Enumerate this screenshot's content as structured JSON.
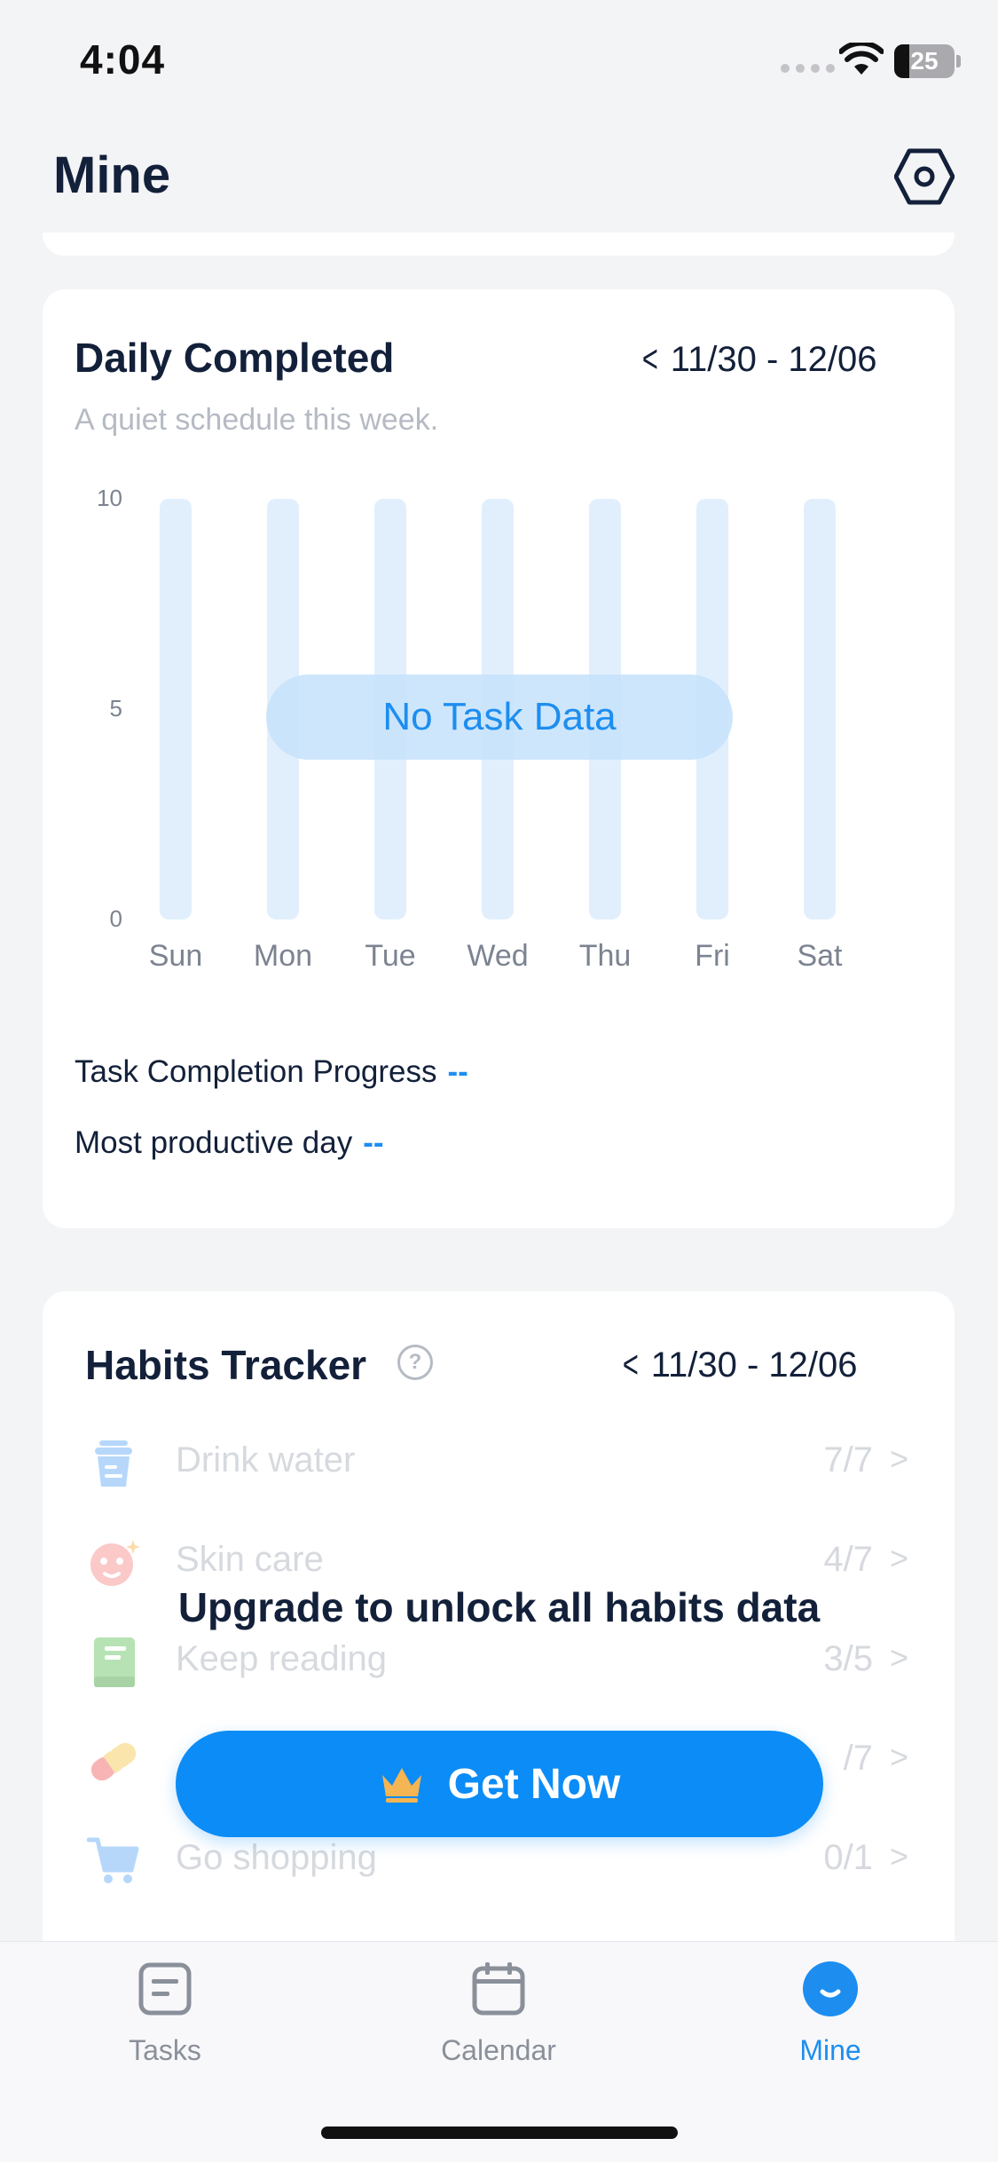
{
  "status": {
    "time": "4:04",
    "battery": "25"
  },
  "header": {
    "title": "Mine"
  },
  "daily": {
    "title": "Daily Completed",
    "date_range": "11/30 - 12/06",
    "subtitle": "A quiet schedule this week.",
    "empty_label": "No Task Data",
    "stats": {
      "progress_label": "Task Completion Progress",
      "progress_value": "--",
      "productive_label": "Most productive day",
      "productive_value": "--"
    }
  },
  "chart_data": {
    "type": "bar",
    "categories": [
      "Sun",
      "Mon",
      "Tue",
      "Wed",
      "Thu",
      "Fri",
      "Sat"
    ],
    "values": [
      0,
      0,
      0,
      0,
      0,
      0,
      0
    ],
    "title": "Daily Completed",
    "xlabel": "",
    "ylabel": "",
    "ylim": [
      0,
      10
    ],
    "yticks": [
      "10",
      "5",
      "0"
    ],
    "grid": false
  },
  "habits": {
    "title": "Habits Tracker",
    "date_range": "11/30 - 12/06",
    "help_glyph": "?",
    "items": [
      {
        "name": "Drink water",
        "count": "7/7",
        "icon": "water-cup-icon"
      },
      {
        "name": "Skin care",
        "count": "4/7",
        "icon": "face-mask-icon"
      },
      {
        "name": "Keep reading",
        "count": "3/5",
        "icon": "book-icon"
      },
      {
        "name": "",
        "count": "/7",
        "icon": "pill-icon"
      },
      {
        "name": "Go shopping",
        "count": "0/1",
        "icon": "shopping-cart-icon"
      }
    ],
    "upgrade_text": "Upgrade to unlock all habits data",
    "cta_label": "Get Now"
  },
  "tabs": [
    {
      "label": "Tasks",
      "icon": "tasks-icon"
    },
    {
      "label": "Calendar",
      "icon": "calendar-icon"
    },
    {
      "label": "Mine",
      "icon": "mine-icon"
    }
  ],
  "colors": {
    "accent": "#1D8EF0",
    "cta": "#0B8CF6",
    "background": "#F3F4F6"
  }
}
